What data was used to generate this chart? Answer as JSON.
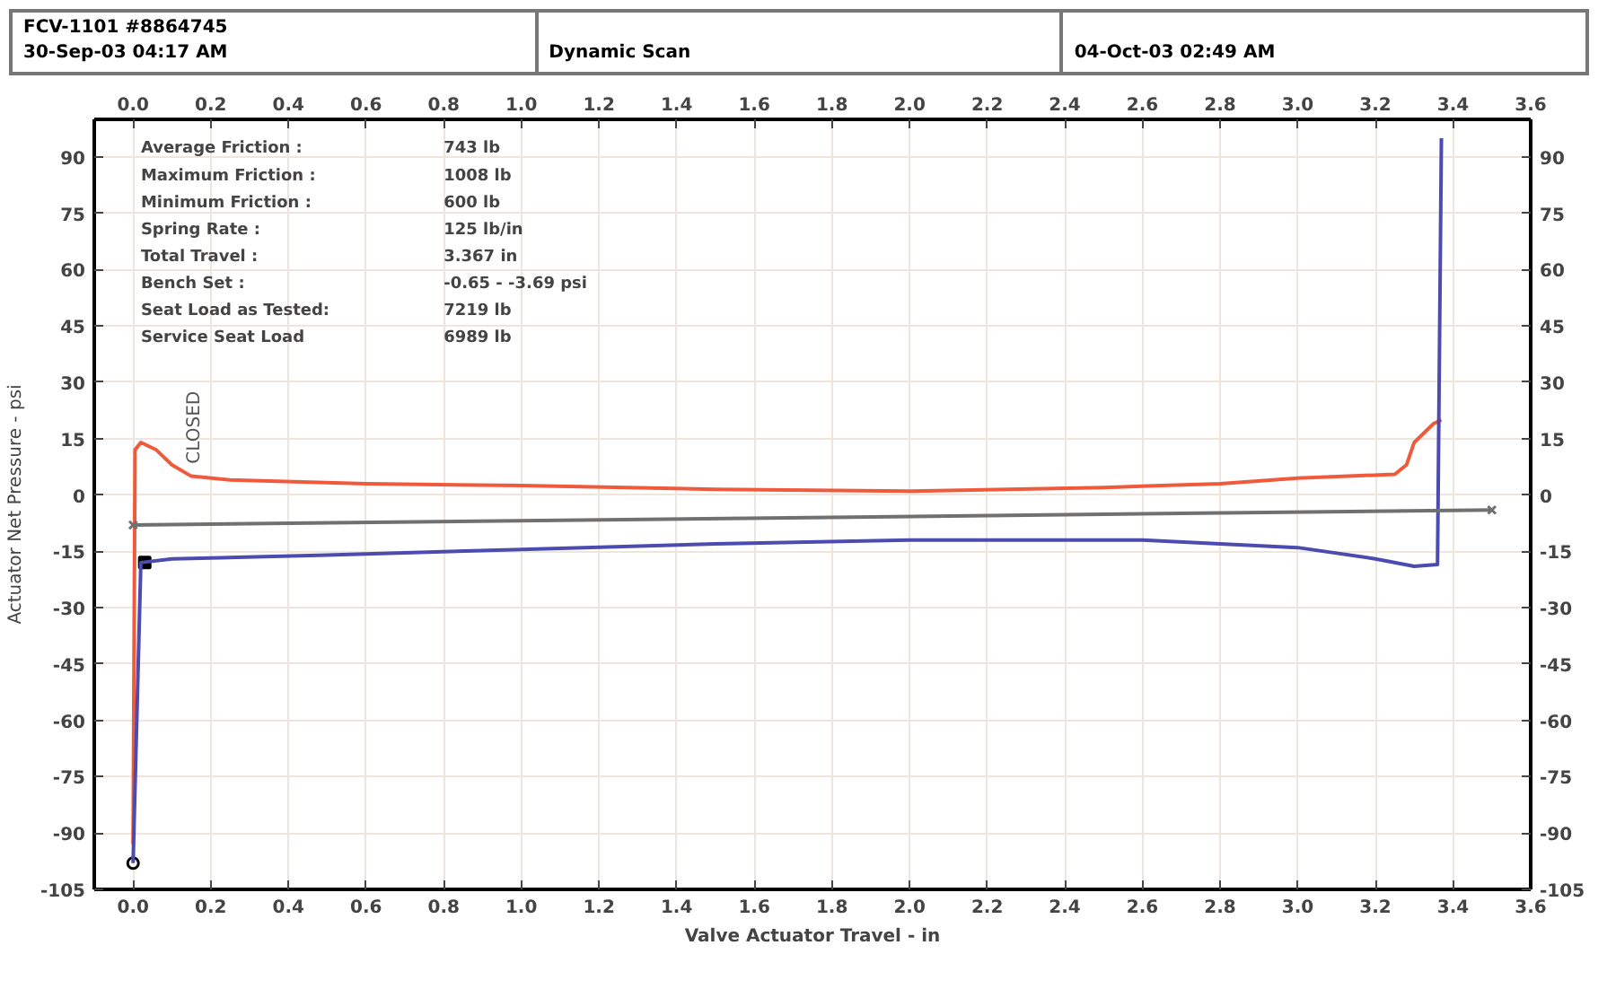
{
  "chart_data": {
    "type": "line",
    "title": "FCV-1101 #8864745",
    "subtitle": "30-Sep-03 04:17 AM",
    "xlabel": "Valve Actuator Travel - in",
    "ylabel": "Actuator Net Pressure - psi",
    "xlim": [
      -0.1,
      3.6
    ],
    "xticks": [
      {
        "value": 0,
        "label": "0.0"
      },
      0.2,
      0.4,
      0.6,
      0.8,
      {
        "value": 1,
        "label": "1.0"
      },
      1.2,
      1.4,
      1.6,
      1.8,
      {
        "value": 2,
        "label": "2.0"
      },
      2.2,
      2.4,
      2.6,
      2.8,
      {
        "value": 3,
        "label": "3.0"
      },
      3.2,
      3.4,
      3.6
    ],
    "x2lim": [
      -0.1,
      3.6
    ],
    "x2ticks": [
      {
        "value": 0,
        "label": "0.0"
      },
      0.2,
      0.4,
      0.6,
      0.8,
      {
        "value": 1,
        "label": "1.0"
      },
      1.2,
      1.4,
      1.6,
      1.8,
      {
        "value": 2,
        "label": "2.0"
      },
      2.2,
      2.4,
      2.6,
      2.8,
      {
        "value": 3,
        "label": "3.0"
      },
      3.2,
      3.4,
      3.6
    ],
    "ylim": [
      -105,
      100
    ],
    "yticks": [
      -105,
      -90,
      -75,
      -60,
      -45,
      -30,
      -15,
      0,
      15,
      30,
      45,
      60,
      75,
      90
    ],
    "y2lim": [
      -105,
      100
    ],
    "y2ticks": [
      -105,
      -90,
      -75,
      -60,
      -45,
      -30,
      -15,
      0,
      15,
      30,
      45,
      60,
      75,
      90
    ],
    "grid": true,
    "line_style": "solid",
    "series": [
      {
        "color": "#f05a3c",
        "x": [
          0.0,
          0.005,
          0.02,
          0.06,
          0.1,
          0.15,
          0.25,
          0.6,
          1.0,
          1.5,
          2.0,
          2.5,
          2.8,
          3.0,
          3.25,
          3.28,
          3.3,
          3.35,
          3.37
        ],
        "values": [
          -93,
          12,
          14,
          12,
          8,
          5,
          4,
          3,
          2.5,
          1.5,
          1,
          2,
          3,
          4.5,
          5.5,
          8,
          14,
          19,
          20
        ]
      },
      {
        "color": "#4b4bb0",
        "x": [
          0.0,
          0.02,
          0.1,
          0.5,
          1.0,
          1.5,
          2.0,
          2.6,
          3.0,
          3.2,
          3.3,
          3.36,
          3.37
        ],
        "values": [
          -98,
          -18,
          -17,
          -16,
          -14.5,
          -13,
          -12,
          -12,
          -14,
          -17,
          -19,
          -18.5,
          95
        ]
      },
      {
        "color": "#707070",
        "x": [
          0.0,
          3.5
        ],
        "values": [
          -8,
          -4
        ],
        "marker": "cross"
      },
      {
        "type": "scatter",
        "color": "#000000",
        "x": [
          0.0
        ],
        "values": [
          -98
        ],
        "marker": "circle"
      },
      {
        "type": "scatter",
        "color": "#000000",
        "x": [
          0.03
        ],
        "values": [
          -18
        ],
        "marker": "square"
      }
    ],
    "annotations": [
      "Dynamic Scan",
      "04-Oct-03 02:49 AM",
      "Average Friction :",
      "743 lb",
      "Maximum Friction :",
      "1008 lb",
      "Minimum Friction :",
      "600 lb",
      "Spring Rate :",
      "125 lb/in",
      "Total Travel :",
      "3.367 in",
      "Bench Set :",
      "-0.65 - -3.69 psi",
      "Seat Load as Tested:",
      "7219 lb",
      "Service Seat Load",
      "6989 lb",
      "CLOSED"
    ]
  }
}
